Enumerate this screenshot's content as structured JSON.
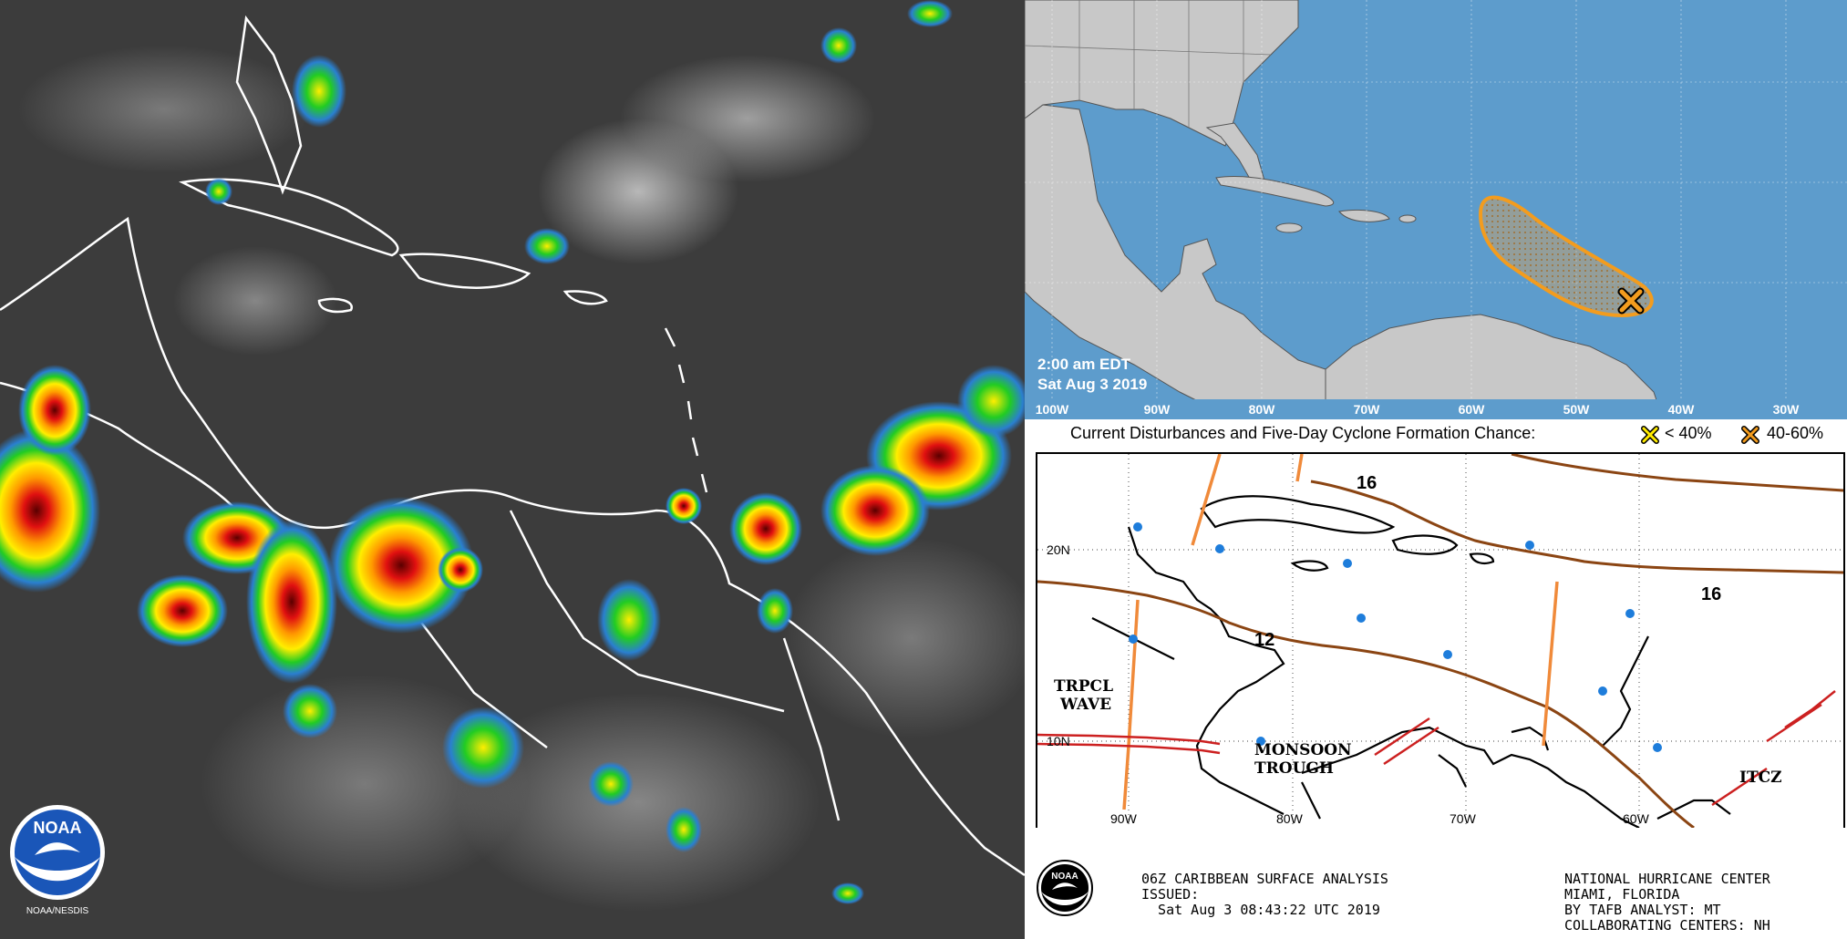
{
  "outlook": {
    "time_line1": "2:00 am EDT",
    "time_line2": "Sat Aug 3 2019",
    "lon_labels": [
      "100W",
      "90W",
      "80W",
      "70W",
      "60W",
      "50W",
      "40W",
      "30W"
    ],
    "legend_title": "Current Disturbances and Five-Day Cyclone Formation Chance:",
    "legend_low": "< 40%",
    "legend_mid": "40-60%",
    "colors": {
      "ocean": "#5d9ccc",
      "land": "#c8c8c8",
      "area_outline": "#f39c1e",
      "low_marker": "#ffeb00",
      "mid_marker": "#f39c1e"
    }
  },
  "surface": {
    "lat_labels": [
      "20N",
      "10N"
    ],
    "lon_labels": [
      "90W",
      "80W",
      "70W",
      "60W"
    ],
    "isobars": [
      "16",
      "16",
      "12"
    ],
    "features": [
      "TRPCL",
      "WAVE",
      "MONSOON",
      "TROUGH",
      "ITCZ"
    ],
    "header_left_line1": "06Z CARIBBEAN SURFACE ANALYSIS",
    "header_left_line2": "ISSUED:",
    "header_left_line3": "  Sat Aug 3 08:43:22 UTC 2019",
    "header_right_line1": "NATIONAL HURRICANE CENTER",
    "header_right_line2": "MIAMI, FLORIDA",
    "header_right_line3": "BY TAFB ANALYST: MT",
    "header_right_line4": "COLLABORATING CENTERS: NH"
  },
  "satellite": {
    "logo_text": "NOAA",
    "logo_caption": "NOAA/NESDIS"
  }
}
